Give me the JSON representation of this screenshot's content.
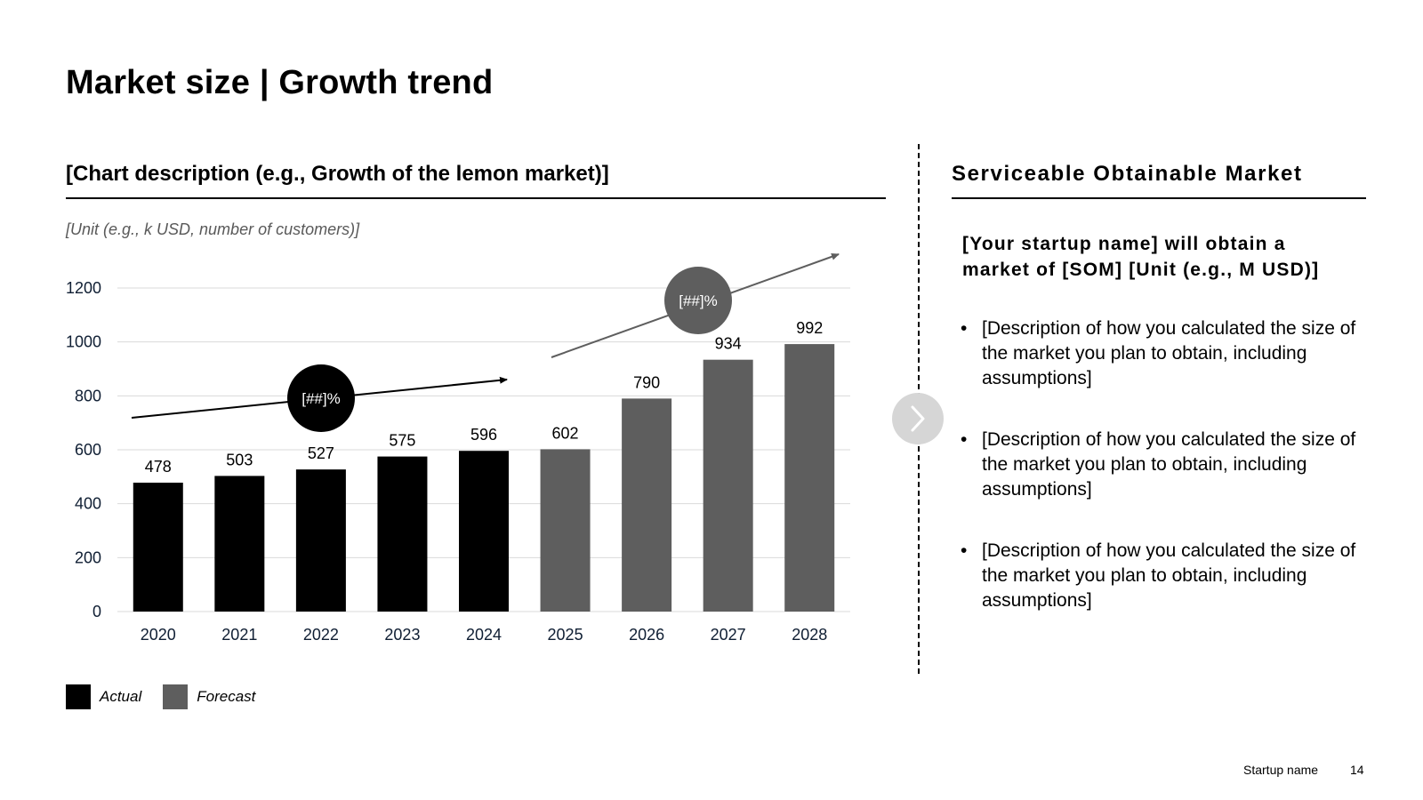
{
  "slide": {
    "title": "Market size | Growth trend",
    "chart_heading": "[Chart description (e.g., Growth of the lemon market)]",
    "unit_label": "[Unit (e.g., k USD, number of customers)]",
    "footer_name": "Startup name",
    "page_number": "14"
  },
  "legend": {
    "actual": "Actual",
    "forecast": "Forecast"
  },
  "side": {
    "heading": "Serviceable Obtainable Market",
    "lead": "[Your startup name] will obtain a market of [SOM] [Unit (e.g., M USD)]",
    "bullets": [
      "[Description of how you calculated the size of the market you plan to obtain, including assumptions]",
      "[Description of how you calculated the size of the market you plan to obtain, including assumptions]",
      "[Description of how you calculated the size of the market you plan to obtain, including assumptions]"
    ]
  },
  "colors": {
    "actual": "#000000",
    "forecast": "#5e5e5e",
    "gridline": "#d9d9d9",
    "next_button": "#d6d6d6"
  },
  "icons": {
    "next": "chevron-right-icon"
  },
  "chart_data": {
    "type": "bar",
    "categories": [
      "2020",
      "2021",
      "2022",
      "2023",
      "2024",
      "2025",
      "2026",
      "2027",
      "2028"
    ],
    "series": [
      {
        "name": "Actual",
        "values": [
          478,
          503,
          527,
          575,
          596,
          null,
          null,
          null,
          null
        ]
      },
      {
        "name": "Forecast",
        "values": [
          null,
          null,
          null,
          null,
          null,
          602,
          790,
          934,
          992
        ]
      }
    ],
    "data_labels": [
      "478",
      "503",
      "527",
      "575",
      "596",
      "602",
      "790",
      "934",
      "992"
    ],
    "ylim": [
      0,
      1200
    ],
    "yticks": [
      0,
      200,
      400,
      600,
      800,
      1000,
      1200
    ],
    "grid": true,
    "legend_position": "bottom-left",
    "annotations": [
      {
        "text": "[##]%",
        "period": "actual",
        "from": "2020",
        "to": "2024"
      },
      {
        "text": "[##]%",
        "period": "forecast",
        "from": "2025",
        "to": "2028"
      }
    ]
  }
}
